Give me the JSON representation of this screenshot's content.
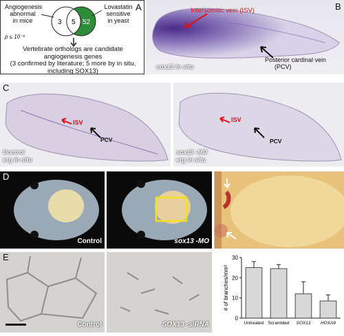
{
  "panelA": {
    "label": "A",
    "left_title_1": "Angiogenesis",
    "left_title_2": "abnormal",
    "left_title_3": "in mice",
    "right_title_1": "Lovastatin",
    "right_title_2": "sensitive",
    "right_title_3": "in yeast",
    "n_left": "3",
    "n_mid": "5",
    "n_right": "52",
    "pvalue": "p ≤ 10⁻⁶",
    "text_1": "Vertebrate orthologs are candidate",
    "text_2": "angiogenesis genes",
    "text_3": "(3 confirmed by literature; 5 more by in situ,",
    "text_4": "including SOX13)"
  },
  "panelB": {
    "label": "B",
    "isv": "Intersomitic vein (ISV)",
    "pcv_1": "Posterior cardinal vein",
    "pcv_2": "(PCV)",
    "caption": "sox13 in situ"
  },
  "panelC": {
    "label": "C",
    "left_isv": "ISV",
    "left_pcv": "PCV",
    "left_cap1": "Control",
    "left_cap2": "erg in situ",
    "right_isv": "ISV",
    "right_pcv": "PCV",
    "right_cap1": "sox13 -MO",
    "right_cap2": "erg in situ"
  },
  "panelD": {
    "label": "D",
    "left_cap": "Control",
    "mid_cap": "sox13 -MO"
  },
  "panelE": {
    "label": "E",
    "left_cap": "Control",
    "mid_cap": "SOX13 -siRNA"
  },
  "chart_data": {
    "type": "bar",
    "title": "",
    "xlabel": "",
    "ylabel": "# of branches/mm²",
    "categories": [
      "Untreated",
      "Scrambled",
      "SOX13",
      "HOXA9"
    ],
    "values": [
      25,
      24.5,
      12,
      8.5
    ],
    "errors": [
      3,
      2,
      6,
      3
    ],
    "ylim": [
      0,
      30
    ],
    "yticks": [
      0,
      10,
      20,
      30
    ],
    "colors": {
      "bar": "#d8d8d8",
      "edge": "#222"
    }
  }
}
